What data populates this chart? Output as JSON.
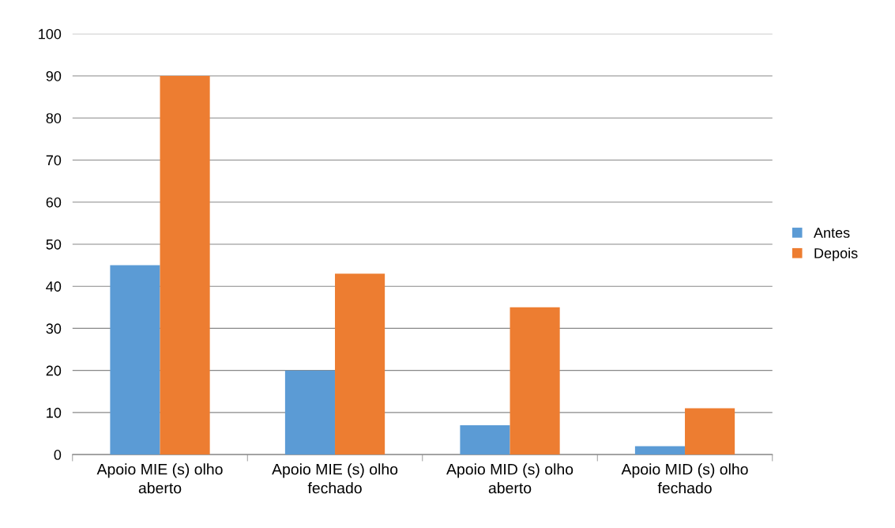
{
  "chart_data": {
    "type": "bar",
    "categories": [
      "Apoio MIE (s) olho aberto",
      "Apoio MIE (s) olho fechado",
      "Apoio MID (s) olho aberto",
      "Apoio MID (s) olho fechado"
    ],
    "series": [
      {
        "name": "Antes",
        "color": "#5b9bd5",
        "values": [
          45,
          20,
          7,
          2
        ]
      },
      {
        "name": "Depois",
        "color": "#ed7d31",
        "values": [
          90,
          43,
          35,
          11
        ]
      }
    ],
    "ylim": [
      0,
      100
    ],
    "yticks": [
      0,
      10,
      20,
      30,
      40,
      50,
      60,
      70,
      80,
      90,
      100
    ],
    "grid": "y",
    "legend": "right"
  }
}
